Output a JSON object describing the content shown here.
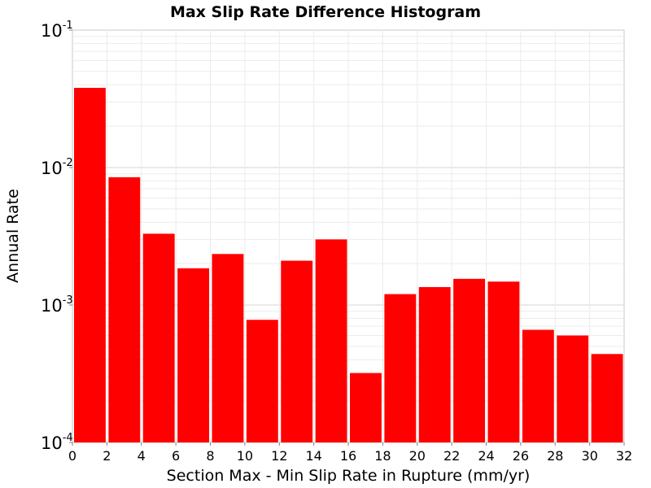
{
  "chart_data": {
    "type": "bar",
    "title": "Max Slip Rate Difference Histogram",
    "xlabel": "Section Max - Min Slip Rate in Rupture (mm/yr)",
    "ylabel": "Annual Rate",
    "x_ticks": [
      "0",
      "2",
      "4",
      "6",
      "8",
      "10",
      "12",
      "14",
      "16",
      "18",
      "20",
      "22",
      "24",
      "26",
      "28",
      "30",
      "32"
    ],
    "y_ticks": [
      {
        "base": "10",
        "exp": "-1",
        "value": 0.1
      },
      {
        "base": "10",
        "exp": "-2",
        "value": 0.01
      },
      {
        "base": "10",
        "exp": "-3",
        "value": 0.001
      },
      {
        "base": "10",
        "exp": "-4",
        "value": 0.0001
      }
    ],
    "xlim": [
      0,
      32
    ],
    "ylim": [
      0.0001,
      0.1
    ],
    "y_scale": "log",
    "bar_color": "#ff0000",
    "grid": true,
    "bins": [
      {
        "x0": 0,
        "x1": 2,
        "value": 0.038
      },
      {
        "x0": 2,
        "x1": 4,
        "value": 0.0085
      },
      {
        "x0": 4,
        "x1": 6,
        "value": 0.0033
      },
      {
        "x0": 6,
        "x1": 8,
        "value": 0.00185
      },
      {
        "x0": 8,
        "x1": 10,
        "value": 0.00235
      },
      {
        "x0": 10,
        "x1": 12,
        "value": 0.00078
      },
      {
        "x0": 12,
        "x1": 14,
        "value": 0.0021
      },
      {
        "x0": 14,
        "x1": 16,
        "value": 0.003
      },
      {
        "x0": 16,
        "x1": 18,
        "value": 0.00032
      },
      {
        "x0": 18,
        "x1": 20,
        "value": 0.0012
      },
      {
        "x0": 20,
        "x1": 22,
        "value": 0.00135
      },
      {
        "x0": 22,
        "x1": 24,
        "value": 0.00155
      },
      {
        "x0": 24,
        "x1": 26,
        "value": 0.00148
      },
      {
        "x0": 26,
        "x1": 28,
        "value": 0.00066
      },
      {
        "x0": 28,
        "x1": 30,
        "value": 0.0006
      },
      {
        "x0": 30,
        "x1": 32,
        "value": 0.00044
      }
    ]
  }
}
